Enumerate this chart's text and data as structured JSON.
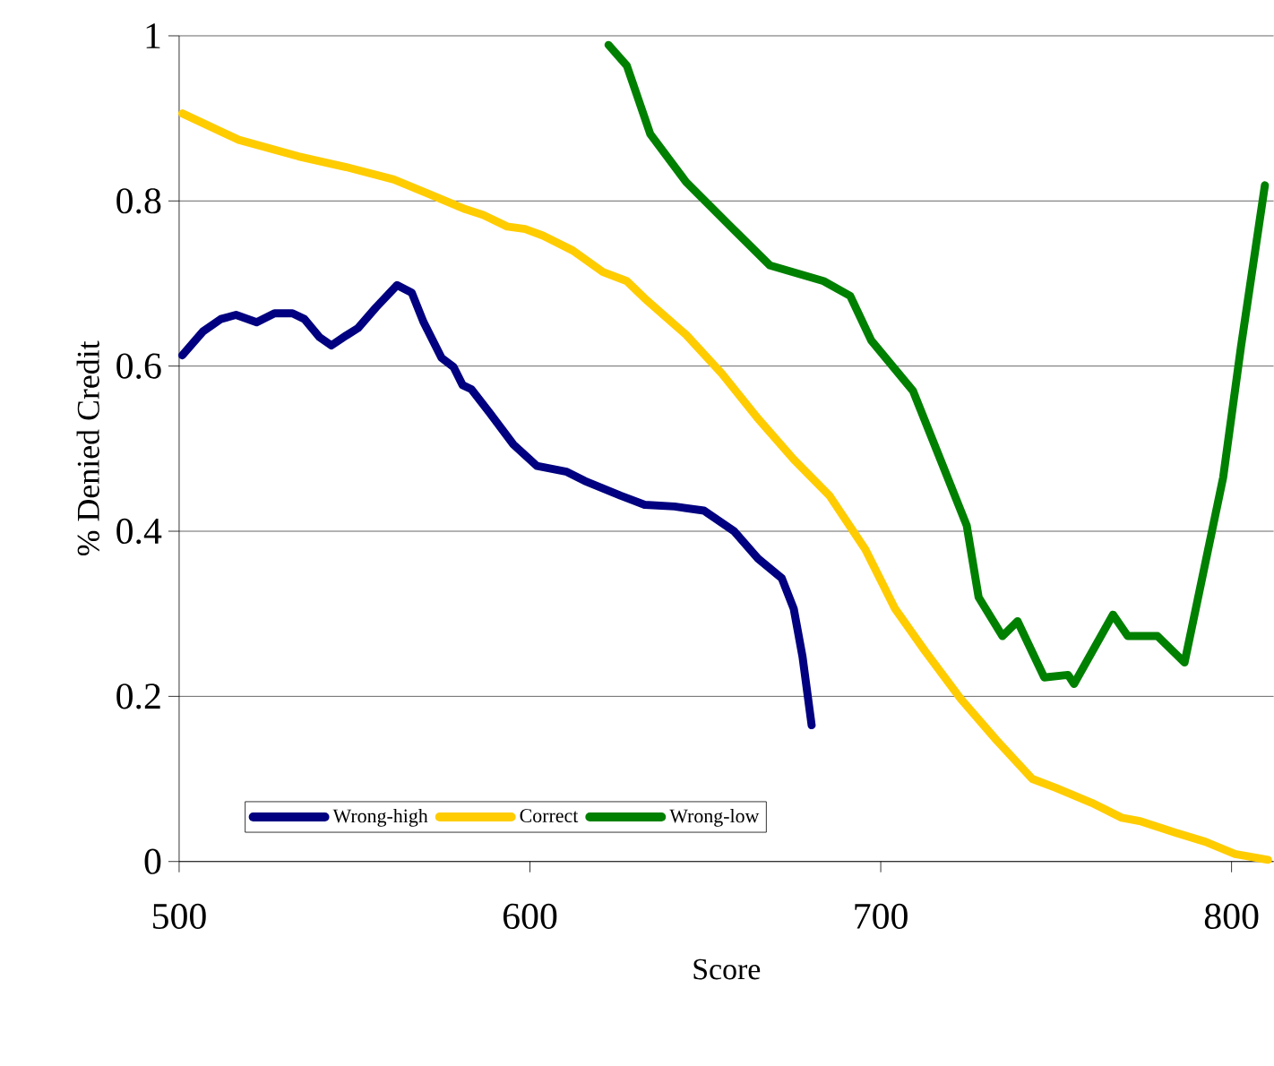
{
  "chart_data": {
    "type": "line",
    "xlabel": "Score",
    "ylabel": "% Denied Credit",
    "xlim": [
      500,
      812
    ],
    "ylim": [
      0,
      1
    ],
    "xticks": [
      500,
      600,
      700,
      800
    ],
    "yticks": [
      0,
      0.2,
      0.4,
      0.6,
      0.8,
      1
    ],
    "grid": "y",
    "legend": "bottom left",
    "line_style": "solid",
    "marker": "none",
    "series": [
      {
        "name": "Wrong-high",
        "color": "#000080",
        "x": [
          500.9,
          506.8,
          511.9,
          516.2,
          522.1,
          527.2,
          532.3,
          535.7,
          540.0,
          543.4,
          547.6,
          551.0,
          556.1,
          562.1,
          566.3,
          569.7,
          574.8,
          578.2,
          580.8,
          583.3,
          588.4,
          595.3,
          602.0,
          610.5,
          615.6,
          625.9,
          632.7,
          641.2,
          649.6,
          658.2,
          665.0,
          671.8,
          675.2,
          677.7,
          680.3
        ],
        "values": [
          0.613,
          0.642,
          0.657,
          0.662,
          0.653,
          0.664,
          0.664,
          0.657,
          0.635,
          0.625,
          0.637,
          0.646,
          0.671,
          0.698,
          0.689,
          0.653,
          0.61,
          0.599,
          0.577,
          0.572,
          0.544,
          0.505,
          0.479,
          0.472,
          0.461,
          0.443,
          0.432,
          0.43,
          0.425,
          0.4,
          0.367,
          0.343,
          0.306,
          0.248,
          0.165
        ]
      },
      {
        "name": "Correct",
        "color": "#ffcc00",
        "x": [
          500.9,
          517.0,
          534.0,
          547.6,
          561.2,
          571.4,
          581.6,
          586.7,
          593.5,
          598.6,
          603.7,
          612.2,
          620.8,
          627.6,
          632.7,
          644.5,
          654.7,
          664.9,
          675.2,
          685.4,
          695.6,
          704.1,
          712.6,
          722.8,
          733.0,
          743.2,
          750.0,
          760.2,
          768.7,
          773.8,
          784.0,
          792.5,
          801.0,
          810.4
        ],
        "values": [
          0.906,
          0.874,
          0.854,
          0.841,
          0.826,
          0.808,
          0.79,
          0.783,
          0.769,
          0.766,
          0.758,
          0.74,
          0.714,
          0.703,
          0.682,
          0.638,
          0.591,
          0.537,
          0.487,
          0.443,
          0.378,
          0.306,
          0.255,
          0.197,
          0.147,
          0.1,
          0.089,
          0.071,
          0.053,
          0.049,
          0.035,
          0.024,
          0.009,
          0.002
        ]
      },
      {
        "name": "Wrong-low",
        "color": "#008000",
        "x": [
          622.4,
          627.6,
          634.3,
          644.5,
          656.5,
          668.4,
          683.7,
          691.3,
          697.3,
          709.2,
          724.5,
          727.9,
          734.7,
          739.0,
          746.6,
          753.4,
          755.1,
          766.2,
          770.4,
          778.9,
          786.6,
          797.6,
          802.7,
          809.5
        ],
        "values": [
          0.989,
          0.964,
          0.881,
          0.823,
          0.772,
          0.722,
          0.703,
          0.685,
          0.631,
          0.57,
          0.407,
          0.32,
          0.273,
          0.291,
          0.223,
          0.226,
          0.215,
          0.299,
          0.273,
          0.273,
          0.241,
          0.465,
          0.624,
          0.819
        ]
      }
    ]
  }
}
